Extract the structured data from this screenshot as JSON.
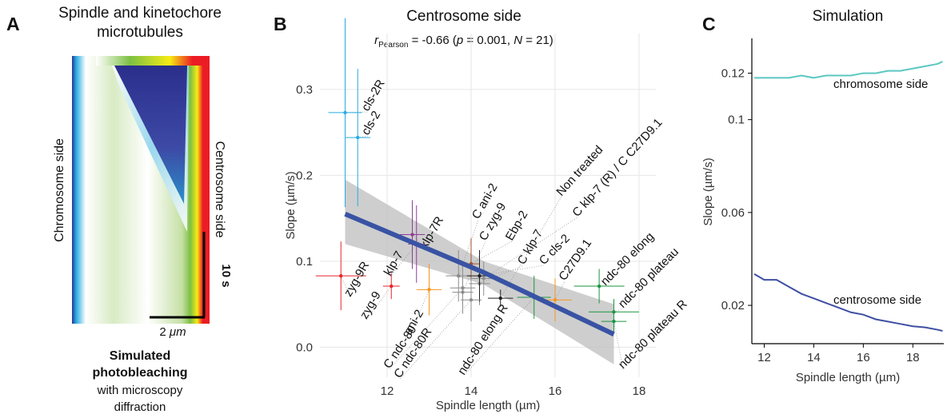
{
  "panel_a": {
    "label": "A",
    "title": [
      "Spindle and kinetochore",
      "microtubules"
    ],
    "left_side": "Chromosome side",
    "right_side": "Centrosome side",
    "time_bar": "10 s",
    "length_bar": [
      "2 ",
      "μm"
    ],
    "caption_bold": [
      "Simulated",
      "photobleaching"
    ],
    "caption": [
      "with microscopy",
      "diffraction"
    ]
  },
  "chart_data": [
    {
      "type": "scatter",
      "label": "B",
      "title": "Centrosome side",
      "stat": [
        "r",
        "Pearson",
        " = -0.66 (",
        "p",
        " = 0.001, ",
        "N",
        " = 21)"
      ],
      "x_label": "Spindle length (µm)",
      "y_label": "Slope (µm/s)",
      "xlim": [
        10.4,
        18.4
      ],
      "ylim": [
        -0.035,
        0.365
      ],
      "xticks": [
        12,
        14,
        16,
        18
      ],
      "yticks": [
        {
          "value": 0,
          "label": "0.0"
        },
        0.1,
        0.2,
        0.3
      ],
      "grid": true,
      "points": [
        {
          "name": "cls-2R",
          "x": 11.0,
          "y": 0.273,
          "xerr": 0.4,
          "yerr": 0.11,
          "color": "#29abe2"
        },
        {
          "name": "cls-2",
          "x": 11.3,
          "y": 0.244,
          "xerr": 0.3,
          "yerr": 0.08,
          "color": "#29abe2"
        },
        {
          "name": "zyg-9R",
          "x": 10.9,
          "y": 0.083,
          "xerr": 0.6,
          "yerr": 0.04,
          "color": "#e5242b"
        },
        {
          "name": "zyg-9",
          "x": 12.1,
          "y": 0.071,
          "xerr": 0.2,
          "yerr": 0.015,
          "color": "#e5242b"
        },
        {
          "name": "klp-7R",
          "x": 12.6,
          "y": 0.131,
          "xerr": 0.3,
          "yerr": 0.04,
          "color": "#8e3d97"
        },
        {
          "name": "klp-7",
          "x": 12.7,
          "y": 0.12,
          "xerr": 0.2,
          "yerr": 0.045,
          "color": "#8e3d97"
        },
        {
          "name": "ani-2",
          "x": 13.0,
          "y": 0.067,
          "xerr": 0.3,
          "yerr": 0.03,
          "color": "#f7941d"
        },
        {
          "name": "Ebp-2",
          "x": 14.0,
          "y": 0.097,
          "xerr": 0.2,
          "yerr": 0.03,
          "color": "#a0522d"
        },
        {
          "name": "C ani-2",
          "x": 13.7,
          "y": 0.083,
          "xerr": 0.3,
          "yerr": 0.03,
          "color": "#8c8c8c"
        },
        {
          "name": "C zyg-9",
          "x": 13.8,
          "y": 0.064,
          "xerr": 0.25,
          "yerr": 0.025,
          "color": "#8c8c8c"
        },
        {
          "name": "C klp-7",
          "x": 14.2,
          "y": 0.074,
          "xerr": 0.25,
          "yerr": 0.025,
          "color": "#8c8c8c"
        },
        {
          "name": "C klp-7 (R) / C C27D9.1",
          "x": 14.3,
          "y": 0.08,
          "xerr": 0.3,
          "yerr": 0.02,
          "color": "#8c8c8c"
        },
        {
          "name": "C cls-2",
          "x": 14.2,
          "y": 0.083,
          "xerr": 0.3,
          "yerr": 0.03,
          "color": "#222222"
        },
        {
          "name": "Non treated",
          "x": 14.7,
          "y": 0.057,
          "xerr": 0.3,
          "yerr": 0.01,
          "color": "#222222"
        },
        {
          "name": "C ndc-80",
          "x": 13.8,
          "y": 0.069,
          "xerr": 0.3,
          "yerr": 0.03,
          "color": "#8c8c8c"
        },
        {
          "name": "C ndc-80R",
          "x": 14.0,
          "y": 0.055,
          "xerr": 0.25,
          "yerr": 0.025,
          "color": "#8c8c8c"
        },
        {
          "name": "C27D9.1",
          "x": 16.0,
          "y": 0.055,
          "xerr": 0.4,
          "yerr": 0.025,
          "color": "#f7941d"
        },
        {
          "name": "ndc-80 elong",
          "x": 17.05,
          "y": 0.071,
          "xerr": 0.6,
          "yerr": 0.02,
          "color": "#1a9641"
        },
        {
          "name": "ndc-80 elong R",
          "x": 15.5,
          "y": 0.058,
          "xerr": 0.4,
          "yerr": 0.025,
          "color": "#1a9641"
        },
        {
          "name": "ndc-80 plateau",
          "x": 17.4,
          "y": 0.041,
          "xerr": 0.6,
          "yerr": 0.015,
          "color": "#1a9641"
        },
        {
          "name": "ndc-80 plateau R",
          "x": 17.4,
          "y": 0.03,
          "xerr": 0.3,
          "yerr": 0.012,
          "color": "#1a9641"
        }
      ],
      "fit": {
        "x": [
          11,
          14.3,
          17.4
        ],
        "y": [
          0.155,
          0.087,
          0.015
        ],
        "lower": [
          0.12,
          0.073,
          -0.02
        ],
        "upper": [
          0.195,
          0.1,
          0.05
        ],
        "color": "#3953a4",
        "band_color": "#bdbdbd"
      }
    },
    {
      "type": "line",
      "label": "C",
      "title": "Simulation",
      "x_label": "Spindle length (µm)",
      "y_label": "Slope (µm/s)",
      "xlim": [
        11.5,
        19.25
      ],
      "ylim": [
        0.0035,
        0.135
      ],
      "xticks": [
        12,
        14,
        16,
        18
      ],
      "yticks": [
        0.02,
        0.06,
        0.1,
        0.12
      ],
      "x": [
        11.6,
        12,
        12.5,
        13,
        13.5,
        14,
        14.5,
        15,
        15.5,
        16,
        16.5,
        17,
        17.5,
        18,
        18.5,
        19,
        19.2
      ],
      "series": [
        {
          "name": "chromosome side",
          "color": "#5bc8c0",
          "values": [
            0.118,
            0.118,
            0.118,
            0.118,
            0.119,
            0.118,
            0.119,
            0.119,
            0.119,
            0.12,
            0.12,
            0.121,
            0.121,
            0.122,
            0.123,
            0.124,
            0.125
          ]
        },
        {
          "name": "centrosome side",
          "color": "#3f4fa3",
          "values": [
            0.0335,
            0.031,
            0.031,
            0.028,
            0.025,
            0.023,
            0.021,
            0.019,
            0.017,
            0.016,
            0.014,
            0.013,
            0.012,
            0.011,
            0.0105,
            0.0095,
            0.009
          ]
        }
      ]
    }
  ]
}
